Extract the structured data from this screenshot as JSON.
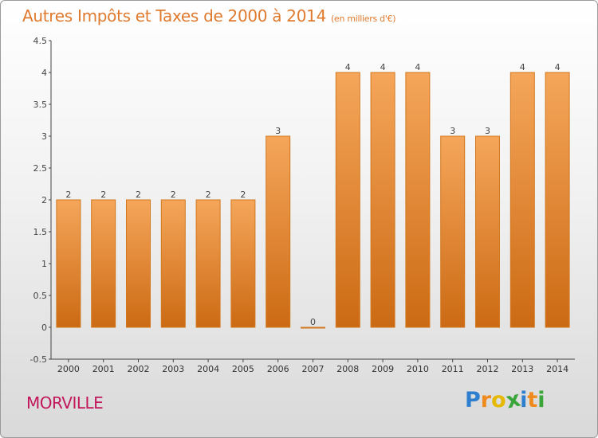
{
  "title": "Autres Impôts et Taxes de 2000 à 2014",
  "unit": "(en milliers d'€)",
  "commune": "MORVILLE",
  "logo": {
    "text": "Proxiti",
    "letters": [
      {
        "ch": "P",
        "color": "#2e7fd0"
      },
      {
        "ch": "r",
        "color": "#f08a1c"
      },
      {
        "ch": "o",
        "color": "#e6b800"
      },
      {
        "ch": "x",
        "color": "#3aa63a"
      },
      {
        "ch": "i",
        "color": "#2e7fd0"
      },
      {
        "ch": "t",
        "color": "#f08a1c"
      },
      {
        "ch": "i",
        "color": "#3aa63a"
      }
    ]
  },
  "colors": {
    "bar_top": "#f5a65a",
    "bar_bottom": "#cc6a14",
    "bar_border": "#d2781e",
    "title": "#e07a2e",
    "commune": "#c2185b"
  },
  "chart_data": {
    "type": "bar",
    "title": "Autres Impôts et Taxes de 2000 à 2014",
    "subtitle": "(en milliers d'€)",
    "categories": [
      "2000",
      "2001",
      "2002",
      "2003",
      "2004",
      "2005",
      "2006",
      "2007",
      "2008",
      "2009",
      "2010",
      "2011",
      "2012",
      "2013",
      "2014"
    ],
    "values": [
      2,
      2,
      2,
      2,
      2,
      2,
      3,
      0,
      4,
      4,
      4,
      3,
      3,
      4,
      4
    ],
    "data_labels": [
      "2",
      "2",
      "2",
      "2",
      "2",
      "2",
      "3",
      "0",
      "4",
      "4",
      "4",
      "3",
      "3",
      "4",
      "4"
    ],
    "ylim": [
      -0.5,
      4.5
    ],
    "yticks": [
      -0.5,
      0,
      0.5,
      1,
      1.5,
      2,
      2.5,
      3,
      3.5,
      4,
      4.5
    ],
    "ytick_labels": [
      "-0.5",
      "0",
      "0.5",
      "1",
      "1.5",
      "2",
      "2.5",
      "3",
      "3.5",
      "4",
      "4.5"
    ],
    "grid": false
  }
}
